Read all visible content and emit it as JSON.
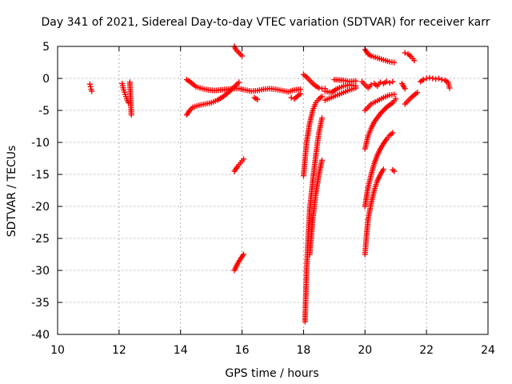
{
  "chart_data": {
    "type": "scatter",
    "title": "Day 341 of 2021, Sidereal Day-to-day VTEC variation (SDTVAR) for receiver karr",
    "xlabel": "GPS time / hours",
    "ylabel": "SDTVAR / TECUs",
    "xlim": [
      10,
      24
    ],
    "ylim": [
      -40,
      5
    ],
    "xticks": [
      10,
      12,
      14,
      16,
      18,
      20,
      22,
      24
    ],
    "yticks": [
      5,
      0,
      -5,
      -10,
      -15,
      -20,
      -25,
      -30,
      -35,
      -40
    ],
    "grid": true,
    "marker": "+",
    "series": [
      {
        "name": "SDTVAR",
        "color": "#ff0000",
        "segments": [
          {
            "x": [
              11.05,
              11.07,
              11.09,
              11.11
            ],
            "y": [
              -0.9,
              -1.3,
              -1.7,
              -2.0
            ]
          },
          {
            "x": [
              12.1,
              12.15,
              12.2,
              12.25,
              12.3
            ],
            "y": [
              -0.8,
              -1.8,
              -2.5,
              -3.2,
              -3.8
            ]
          },
          {
            "x": [
              12.35,
              12.4
            ],
            "y": [
              -0.6,
              -5.7
            ]
          },
          {
            "x": [
              14.2,
              14.3,
              14.4,
              14.5,
              14.7,
              14.9,
              15.1,
              15.3,
              15.5,
              15.7,
              15.9,
              16.1,
              16.3,
              16.5,
              16.7,
              16.9,
              17.1,
              17.3,
              17.5,
              17.7,
              17.9
            ],
            "y": [
              -0.2,
              -0.5,
              -0.9,
              -1.3,
              -1.6,
              -1.8,
              -1.9,
              -1.8,
              -1.7,
              -1.6,
              -1.6,
              -1.8,
              -2.0,
              -1.9,
              -1.7,
              -1.6,
              -1.7,
              -1.9,
              -2.1,
              -1.8,
              -1.7
            ]
          },
          {
            "x": [
              14.2,
              14.3,
              14.4,
              14.6,
              14.8,
              15.0,
              15.2,
              15.4,
              15.6,
              15.75,
              15.9
            ],
            "y": [
              -5.7,
              -5.0,
              -4.5,
              -4.2,
              -4.0,
              -3.8,
              -3.4,
              -2.8,
              -2.0,
              -1.3,
              -0.6
            ]
          },
          {
            "x": [
              15.75,
              15.8,
              15.9,
              16.0
            ],
            "y": [
              5.0,
              4.5,
              4.0,
              3.5
            ]
          },
          {
            "x": [
              15.75,
              15.85,
              15.95,
              16.05
            ],
            "y": [
              -14.5,
              -13.8,
              -13.2,
              -12.6
            ]
          },
          {
            "x": [
              15.75,
              15.85,
              15.95,
              16.05
            ],
            "y": [
              -30.0,
              -29.0,
              -28.2,
              -27.5
            ]
          },
          {
            "x": [
              16.4,
              16.5
            ],
            "y": [
              -3.0,
              -3.3
            ]
          },
          {
            "x": [
              17.6,
              17.7,
              17.8,
              17.9
            ],
            "y": [
              -3.0,
              -3.2,
              -2.8,
              -2.4
            ]
          },
          {
            "x": [
              18.0,
              18.1,
              18.2,
              18.3,
              18.4,
              18.5,
              18.6,
              18.7
            ],
            "y": [
              0.6,
              0.2,
              -0.3,
              -0.8,
              -1.2,
              -1.5,
              -1.6,
              -1.6
            ]
          },
          {
            "x": [
              18.0,
              18.1,
              18.2,
              18.3,
              18.4,
              18.5,
              18.6
            ],
            "y": [
              -15.2,
              -10.0,
              -7.0,
              -5.0,
              -3.8,
              -3.2,
              -2.8
            ]
          },
          {
            "x": [
              18.05,
              18.1,
              18.15,
              18.2,
              18.3,
              18.4,
              18.5,
              18.6
            ],
            "y": [
              -38.0,
              -30.0,
              -25.0,
              -20.5,
              -16.0,
              -12.0,
              -8.5,
              -6.2
            ]
          },
          {
            "x": [
              18.2,
              18.3,
              18.4,
              18.5,
              18.6
            ],
            "y": [
              -27.5,
              -22.0,
              -18.0,
              -15.0,
              -12.8
            ]
          },
          {
            "x": [
              18.7,
              18.9,
              19.1,
              19.3,
              19.5,
              19.7
            ],
            "y": [
              -2.0,
              -2.2,
              -1.6,
              -1.2,
              -1.0,
              -1.2
            ]
          },
          {
            "x": [
              18.7,
              18.9,
              19.1,
              19.3,
              19.5,
              19.7
            ],
            "y": [
              -3.4,
              -3.0,
              -2.6,
              -2.2,
              -1.8,
              -1.5
            ]
          },
          {
            "x": [
              19.0,
              19.3,
              19.5,
              19.7
            ],
            "y": [
              -0.2,
              -0.3,
              -0.5,
              -0.4
            ]
          },
          {
            "x": [
              19.9,
              20.0,
              20.1,
              20.2,
              20.3,
              20.4,
              20.5,
              20.6,
              20.7,
              20.8,
              20.9
            ],
            "y": [
              -0.5,
              -1.0,
              -1.5,
              -1.0,
              -0.8,
              -1.2,
              -0.6,
              -0.8,
              -0.5,
              -0.7,
              -0.5
            ]
          },
          {
            "x": [
              20.0,
              20.1,
              20.2,
              20.4,
              20.6,
              20.8,
              20.95
            ],
            "y": [
              4.5,
              3.8,
              3.5,
              3.2,
              2.9,
              2.6,
              2.5
            ]
          },
          {
            "x": [
              20.0,
              20.1,
              20.2,
              20.4,
              20.6,
              20.8,
              20.95
            ],
            "y": [
              -5.0,
              -4.5,
              -4.0,
              -3.5,
              -3.0,
              -2.6,
              -2.5
            ]
          },
          {
            "x": [
              20.0,
              20.1,
              20.2,
              20.3,
              20.5,
              20.7,
              20.9
            ],
            "y": [
              -11.0,
              -9.0,
              -7.8,
              -6.8,
              -5.5,
              -4.5,
              -3.8
            ]
          },
          {
            "x": [
              20.0,
              20.1,
              20.2,
              20.3,
              20.4,
              20.5,
              20.6,
              20.7,
              20.8,
              20.9
            ],
            "y": [
              -20.0,
              -17.0,
              -15.0,
              -13.3,
              -12.0,
              -11.0,
              -10.2,
              -9.5,
              -8.9,
              -8.5
            ]
          },
          {
            "x": [
              20.0,
              20.05,
              20.1,
              20.2,
              20.3,
              20.4,
              20.5,
              20.6
            ],
            "y": [
              -27.5,
              -24.5,
              -22.0,
              -19.5,
              -17.5,
              -16.0,
              -15.0,
              -14.2
            ]
          },
          {
            "x": [
              20.9,
              20.95
            ],
            "y": [
              -14.3,
              -14.5
            ]
          },
          {
            "x": [
              20.9,
              21.0
            ],
            "y": [
              -3.8,
              -3.2
            ]
          },
          {
            "x": [
              21.2,
              21.3
            ],
            "y": [
              -0.8,
              -1.6
            ]
          },
          {
            "x": [
              21.3,
              21.4,
              21.5,
              21.6
            ],
            "y": [
              4.0,
              3.8,
              3.4,
              2.8
            ]
          },
          {
            "x": [
              21.3,
              21.4,
              21.5,
              21.6,
              21.7
            ],
            "y": [
              -4.0,
              -3.5,
              -3.0,
              -2.6,
              -2.2
            ]
          },
          {
            "x": [
              21.8,
              21.9,
              22.0,
              22.1,
              22.2,
              22.3,
              22.4,
              22.5,
              22.6,
              22.7,
              22.75
            ],
            "y": [
              -0.5,
              -0.2,
              0.0,
              0.1,
              0.0,
              -0.1,
              0.0,
              -0.2,
              -0.3,
              -0.6,
              -1.5
            ]
          }
        ]
      }
    ]
  }
}
